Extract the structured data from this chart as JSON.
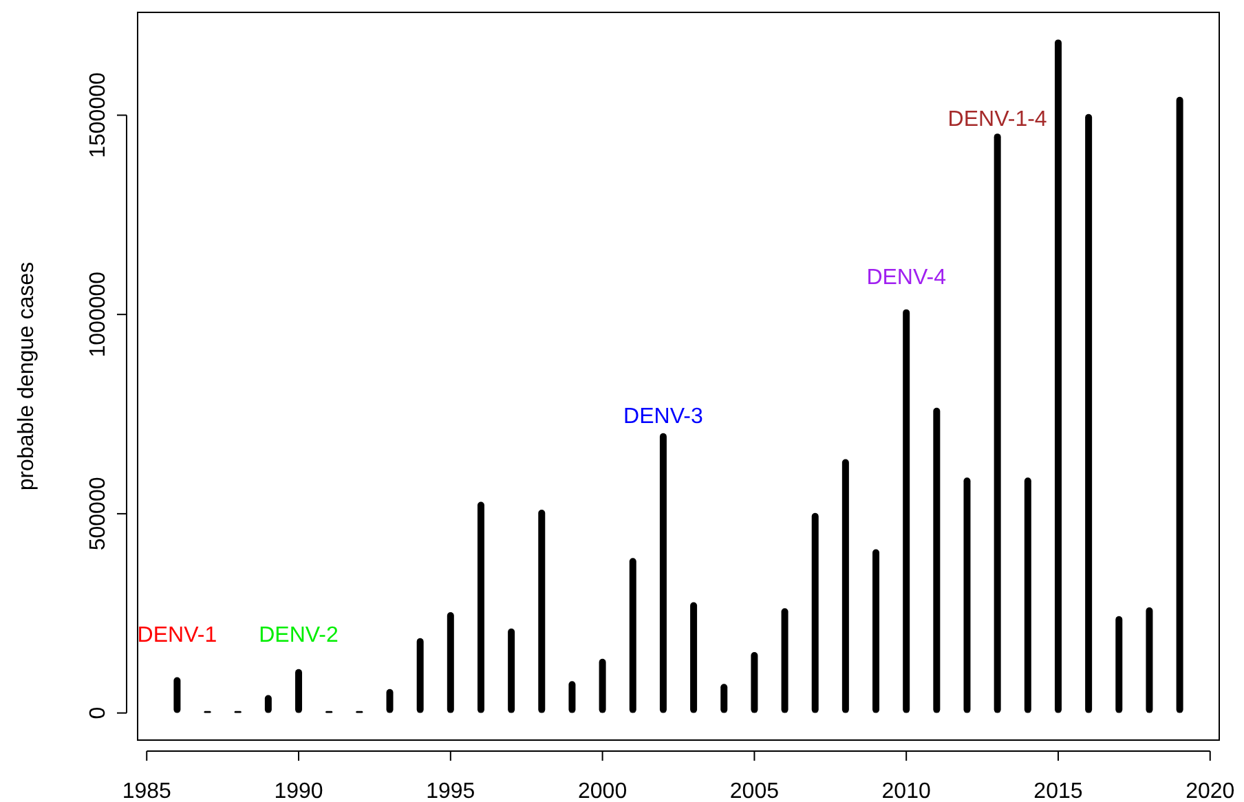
{
  "chart_data": {
    "type": "bar",
    "ylabel": "probable dengue cases",
    "x": [
      1986,
      1987,
      1988,
      1989,
      1990,
      1991,
      1992,
      1993,
      1994,
      1995,
      1996,
      1997,
      1998,
      1999,
      2000,
      2001,
      2002,
      2003,
      2004,
      2005,
      2006,
      2007,
      2008,
      2009,
      2010,
      2011,
      2012,
      2013,
      2014,
      2015,
      2016,
      2017,
      2018,
      2019
    ],
    "values": [
      90000,
      5000,
      5000,
      45000,
      110000,
      5000,
      5000,
      60000,
      188000,
      253000,
      530000,
      212000,
      510000,
      80000,
      136000,
      389000,
      702000,
      278000,
      73000,
      153000,
      263000,
      502000,
      637000,
      411000,
      1013000,
      766000,
      591000,
      1454000,
      591000,
      1690000,
      1503000,
      243000,
      265000,
      1546000
    ],
    "color": "#000000",
    "xlim": [
      1984.7,
      2020.3
    ],
    "xticks": [
      1985,
      1990,
      1995,
      2000,
      2005,
      2010,
      2015,
      2020
    ],
    "ylim": [
      -68000,
      1758000
    ],
    "yticks": [
      0,
      500000,
      1000000,
      1500000
    ],
    "annotations": [
      "DENV-1",
      "DENV-2",
      "DENV-3",
      "DENV-4",
      "DENV-1-4"
    ]
  }
}
